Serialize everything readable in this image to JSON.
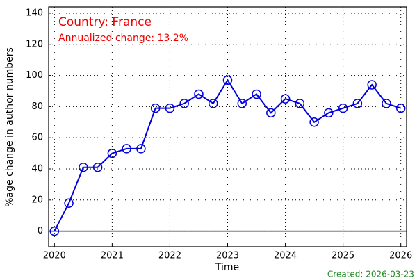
{
  "chart_data": {
    "type": "line",
    "annotations": [
      "Country: France",
      "Annualized change: 13.2%"
    ],
    "footer": "Created: 2026-03-23",
    "xlabel": "Time",
    "ylabel": "%age change in author numbers",
    "x": [
      2020,
      2020.25,
      2020.5,
      2020.75,
      2021,
      2021.25,
      2021.5,
      2021.75,
      2022,
      2022.25,
      2022.5,
      2022.75,
      2023,
      2023.25,
      2023.5,
      2023.75,
      2024,
      2024.25,
      2024.5,
      2024.75,
      2025,
      2025.25,
      2025.5,
      2025.75,
      2026
    ],
    "series": [
      {
        "color": "#0000dd",
        "values": [
          0,
          18,
          41,
          41,
          50,
          53,
          53,
          79,
          79,
          82,
          88,
          82,
          97,
          82,
          88,
          76,
          85,
          82,
          70,
          76,
          79,
          82,
          94,
          82,
          79
        ]
      }
    ],
    "xlim": [
      2019.9,
      2026.1
    ],
    "ylim": [
      -10,
      144
    ],
    "xticks": [
      2020,
      2021,
      2022,
      2023,
      2024,
      2025,
      2026
    ],
    "yticks": [
      0,
      20,
      40,
      60,
      80,
      100,
      120,
      140
    ],
    "hline": 0,
    "grid": true
  }
}
